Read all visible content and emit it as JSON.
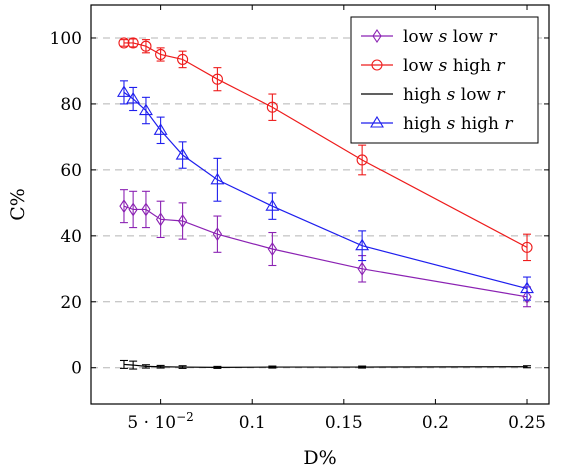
{
  "chart_data": {
    "type": "line",
    "xlabel": "D%",
    "ylabel": "C%",
    "xlim": [
      0.012,
      0.262
    ],
    "ylim": [
      -11,
      110
    ],
    "x_ticks": [
      {
        "value": 0.05,
        "label": "5 · 10",
        "sup": "−2"
      },
      {
        "value": 0.1,
        "label": "0.1"
      },
      {
        "value": 0.15,
        "label": "0.15"
      },
      {
        "value": 0.2,
        "label": "0.2"
      },
      {
        "value": 0.25,
        "label": "0.25"
      }
    ],
    "y_ticks": [
      {
        "value": 0,
        "label": "0"
      },
      {
        "value": 20,
        "label": "20"
      },
      {
        "value": 40,
        "label": "40"
      },
      {
        "value": 60,
        "label": "60"
      },
      {
        "value": 80,
        "label": "80"
      },
      {
        "value": 100,
        "label": "100"
      }
    ],
    "grid": "horizontal dashed",
    "legend_position": "top-right",
    "series": [
      {
        "name": "low s low r",
        "legend_parts": [
          [
            "low ",
            "n"
          ],
          [
            "s",
            "i"
          ],
          [
            " low ",
            "n"
          ],
          [
            "r",
            "i"
          ]
        ],
        "color": "#8b22b3",
        "marker": "diamond",
        "x": [
          0.03,
          0.035,
          0.042,
          0.05,
          0.062,
          0.081,
          0.111,
          0.16,
          0.25
        ],
        "y": [
          49,
          48,
          48,
          45,
          44.5,
          40.5,
          36,
          30,
          21.5
        ],
        "err": [
          5,
          5.5,
          5.5,
          5.5,
          5.5,
          5.5,
          5,
          4,
          3
        ]
      },
      {
        "name": "low s high r",
        "legend_parts": [
          [
            "low ",
            "n"
          ],
          [
            "s",
            "i"
          ],
          [
            " high ",
            "n"
          ],
          [
            "r",
            "i"
          ]
        ],
        "color": "#ee1c1c",
        "marker": "circle",
        "x": [
          0.03,
          0.035,
          0.042,
          0.05,
          0.062,
          0.081,
          0.111,
          0.16,
          0.25
        ],
        "y": [
          98.5,
          98.5,
          97.5,
          95,
          93.5,
          87.5,
          79,
          63,
          36.5
        ],
        "err": [
          1,
          1.2,
          2,
          2,
          2.5,
          3.5,
          4,
          4.5,
          4
        ]
      },
      {
        "name": "high s low r",
        "legend_parts": [
          [
            "high ",
            "n"
          ],
          [
            "s",
            "i"
          ],
          [
            " low ",
            "n"
          ],
          [
            "r",
            "i"
          ]
        ],
        "color": "#000000",
        "marker": "none",
        "x": [
          0.03,
          0.035,
          0.042,
          0.05,
          0.062,
          0.081,
          0.111,
          0.16,
          0.25
        ],
        "y": [
          1,
          0.8,
          0.4,
          0.3,
          0.2,
          0.1,
          0.2,
          0.2,
          0.3
        ],
        "err": [
          1.2,
          1.2,
          0.5,
          0.4,
          0.4,
          0.3,
          0.3,
          0.3,
          0.3
        ]
      },
      {
        "name": "high s high r",
        "legend_parts": [
          [
            "high ",
            "n"
          ],
          [
            "s",
            "i"
          ],
          [
            " high ",
            "n"
          ],
          [
            "r",
            "i"
          ]
        ],
        "color": "#1f1fee",
        "marker": "triangle",
        "x": [
          0.03,
          0.035,
          0.042,
          0.05,
          0.062,
          0.081,
          0.111,
          0.16,
          0.25
        ],
        "y": [
          83.5,
          81.5,
          78,
          72,
          64.5,
          57,
          49,
          37,
          24
        ],
        "err": [
          3.5,
          3.5,
          4,
          4,
          4,
          6.5,
          4,
          4.5,
          3.5
        ]
      }
    ]
  }
}
